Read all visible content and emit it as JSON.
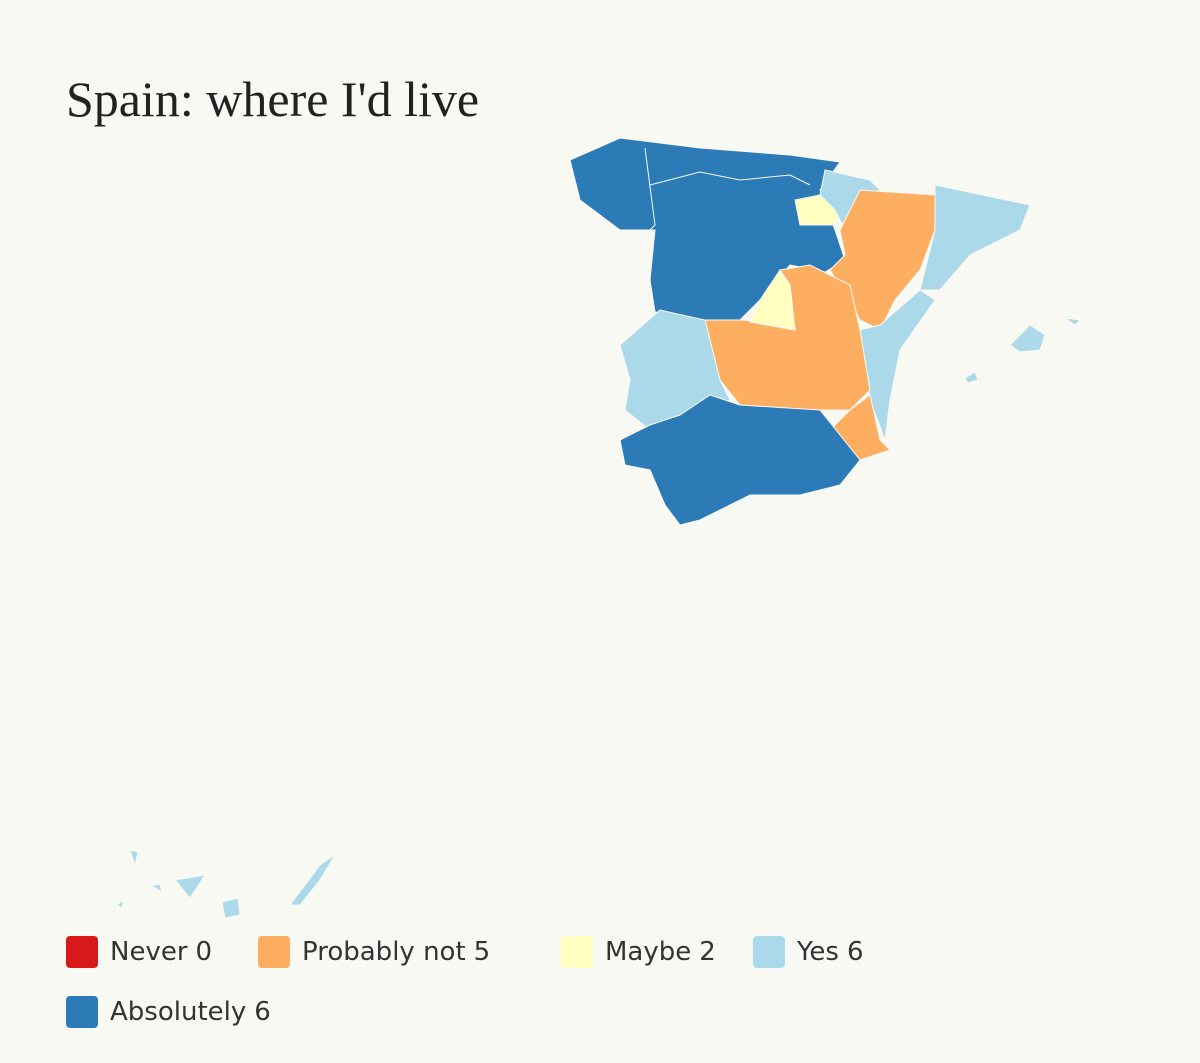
{
  "title": "Spain: where I'd live",
  "legend": [
    {
      "label": "Never",
      "count": 0,
      "color": "#d7191c"
    },
    {
      "label": "Probably not",
      "count": 5,
      "color": "#fdae61"
    },
    {
      "label": "Maybe",
      "count": 2,
      "color": "#ffffbf"
    },
    {
      "label": "Yes",
      "count": 6,
      "color": "#abd9e9"
    },
    {
      "label": "Absolutely",
      "count": 6,
      "color": "#2c7bb6"
    }
  ]
}
